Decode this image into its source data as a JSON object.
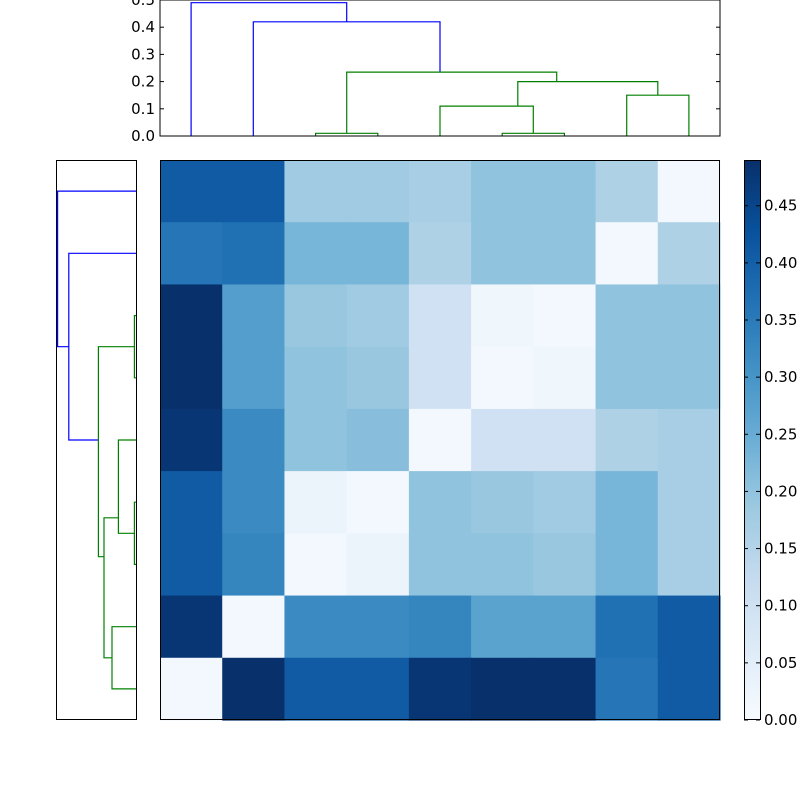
{
  "chart_data": [
    {
      "type": "heatmap",
      "rows": 9,
      "cols": 9,
      "colormap": "Blues",
      "vmin": 0.0,
      "vmax": 0.49,
      "values": [
        [
          0.41,
          0.41,
          0.18,
          0.18,
          0.17,
          0.2,
          0.2,
          0.16,
          0.01
        ],
        [
          0.36,
          0.37,
          0.23,
          0.23,
          0.16,
          0.2,
          0.2,
          0.01,
          0.16
        ],
        [
          0.49,
          0.28,
          0.19,
          0.18,
          0.1,
          0.02,
          0.01,
          0.2,
          0.2
        ],
        [
          0.49,
          0.28,
          0.2,
          0.19,
          0.1,
          0.01,
          0.02,
          0.2,
          0.2
        ],
        [
          0.48,
          0.32,
          0.2,
          0.21,
          0.01,
          0.1,
          0.1,
          0.16,
          0.17
        ],
        [
          0.41,
          0.32,
          0.03,
          0.01,
          0.2,
          0.19,
          0.18,
          0.23,
          0.17
        ],
        [
          0.41,
          0.33,
          0.01,
          0.03,
          0.2,
          0.2,
          0.19,
          0.23,
          0.17
        ],
        [
          0.48,
          0.01,
          0.32,
          0.32,
          0.33,
          0.27,
          0.27,
          0.37,
          0.41
        ],
        [
          0.01,
          0.49,
          0.41,
          0.41,
          0.48,
          0.49,
          0.49,
          0.36,
          0.41
        ]
      ],
      "colorbar": {
        "ticks": [
          "0.00",
          "0.05",
          "0.10",
          "0.15",
          "0.20",
          "0.25",
          "0.30",
          "0.35",
          "0.40",
          "0.45"
        ],
        "tick_values": [
          0.0,
          0.05,
          0.1,
          0.15,
          0.2,
          0.25,
          0.3,
          0.35,
          0.4,
          0.45
        ]
      },
      "xlabel": "",
      "ylabel": ""
    },
    {
      "type": "dendrogram",
      "orientation": "top",
      "ylim": [
        0.0,
        0.5
      ],
      "yticks": [
        "0.0",
        "0.1",
        "0.2",
        "0.3",
        "0.4",
        "0.5"
      ],
      "ytick_values": [
        0.0,
        0.1,
        0.2,
        0.3,
        0.4,
        0.5
      ],
      "leaf_positions": [
        5,
        15,
        25,
        35,
        45,
        55,
        65,
        75,
        85
      ],
      "links": [
        {
          "color": "#0000ff",
          "xs": [
            5,
            5,
            30,
            30
          ],
          "ys": [
            0.0,
            0.49,
            0.49,
            0.42
          ]
        },
        {
          "color": "#0000ff",
          "xs": [
            15,
            15,
            45,
            45
          ],
          "ys": [
            0.0,
            0.42,
            0.42,
            0.235
          ]
        },
        {
          "color": "#008000",
          "xs": [
            30,
            30,
            63.75,
            63.75
          ],
          "ys": [
            0.01,
            0.235,
            0.235,
            0.2
          ]
        },
        {
          "color": "#008000",
          "xs": [
            25,
            25,
            35,
            35
          ],
          "ys": [
            0.0,
            0.01,
            0.01,
            0.0
          ]
        },
        {
          "color": "#008000",
          "xs": [
            57.5,
            57.5,
            80,
            80
          ],
          "ys": [
            0.11,
            0.2,
            0.2,
            0.15
          ]
        },
        {
          "color": "#008000",
          "xs": [
            45,
            45,
            60,
            60
          ],
          "ys": [
            0.0,
            0.11,
            0.11,
            0.01
          ]
        },
        {
          "color": "#008000",
          "xs": [
            55,
            55,
            65,
            65
          ],
          "ys": [
            0.0,
            0.01,
            0.01,
            0.0
          ]
        },
        {
          "color": "#008000",
          "xs": [
            75,
            75,
            85,
            85
          ],
          "ys": [
            0.0,
            0.15,
            0.15,
            0.0
          ]
        }
      ]
    },
    {
      "type": "dendrogram",
      "orientation": "left",
      "xlim": [
        0.5,
        0.0
      ],
      "leaf_positions": [
        5,
        15,
        25,
        35,
        45,
        55,
        65,
        75,
        85
      ],
      "links": [
        {
          "color": "#0000ff",
          "xs": [
            5,
            5,
            30,
            30
          ],
          "ys": [
            0.0,
            0.49,
            0.49,
            0.42
          ]
        },
        {
          "color": "#0000ff",
          "xs": [
            15,
            15,
            45,
            45
          ],
          "ys": [
            0.0,
            0.42,
            0.42,
            0.235
          ]
        },
        {
          "color": "#008000",
          "xs": [
            30,
            30,
            63.75,
            63.75
          ],
          "ys": [
            0.01,
            0.235,
            0.235,
            0.2
          ]
        },
        {
          "color": "#008000",
          "xs": [
            25,
            25,
            35,
            35
          ],
          "ys": [
            0.0,
            0.01,
            0.01,
            0.0
          ]
        },
        {
          "color": "#008000",
          "xs": [
            57.5,
            57.5,
            80,
            80
          ],
          "ys": [
            0.11,
            0.2,
            0.2,
            0.15
          ]
        },
        {
          "color": "#008000",
          "xs": [
            45,
            45,
            60,
            60
          ],
          "ys": [
            0.0,
            0.11,
            0.11,
            0.01
          ]
        },
        {
          "color": "#008000",
          "xs": [
            55,
            55,
            65,
            65
          ],
          "ys": [
            0.0,
            0.01,
            0.01,
            0.0
          ]
        },
        {
          "color": "#008000",
          "xs": [
            75,
            75,
            85,
            85
          ],
          "ys": [
            0.0,
            0.15,
            0.15,
            0.0
          ]
        }
      ]
    }
  ]
}
